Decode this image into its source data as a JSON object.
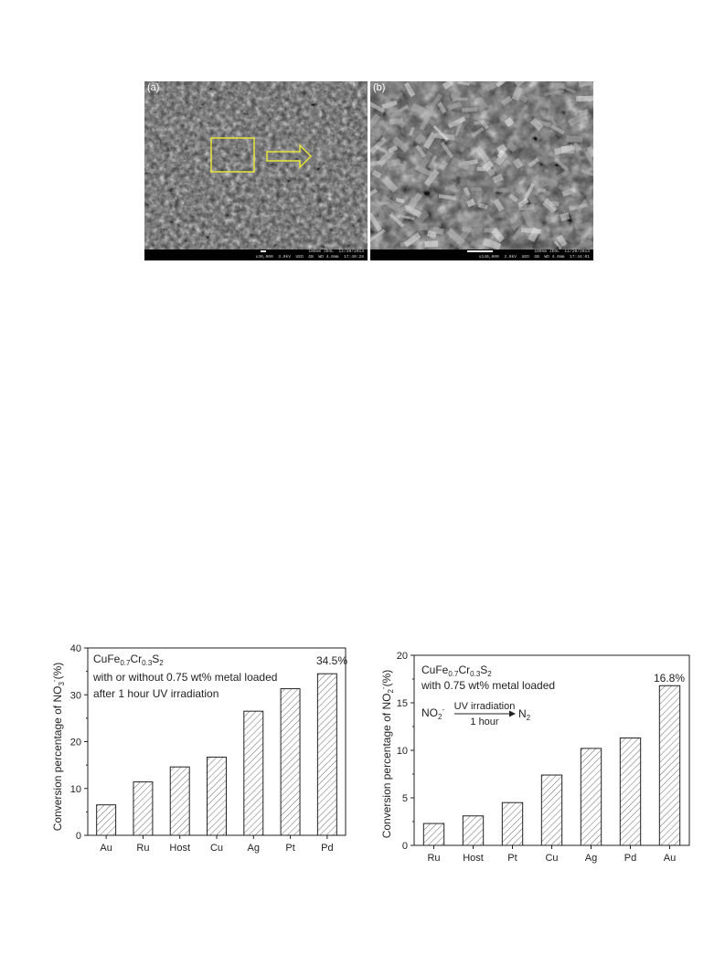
{
  "figure_a": {
    "label": "(a)",
    "info_line1": "100nm JEOL  12/20/2013",
    "info_line2": "x30,000  3.0kV  UED  GB  WD 4.0mm  17:40:28"
  },
  "figure_b": {
    "label": "(b)",
    "info_line1": "100nm JEOL  12/20/2013",
    "info_line2": "x140,000  3.0kV  UED  GB  WD 4.0mm  17:44:01"
  },
  "colors": {
    "highlight": "#e8e43a",
    "bar_hatch": "#444444"
  },
  "chart_data": [
    {
      "type": "bar",
      "categories": [
        "Au",
        "Ru",
        "Host",
        "Cu",
        "Ag",
        "Pt",
        "Pd"
      ],
      "values": [
        6.5,
        11.4,
        14.6,
        16.7,
        26.5,
        31.3,
        34.5
      ],
      "ylim": [
        0,
        40
      ],
      "yticks": [
        "0",
        "10",
        "20",
        "30",
        "40"
      ],
      "ylabel_main": "Conversion percentage of NO",
      "ylabel_sub": "3",
      "ylabel_sup": "-",
      "ylabel_tail": "(%)",
      "annotation": "34.5%",
      "formula": {
        "a": "CuFe",
        "b": "0.7",
        "c": "Cr",
        "d": "0.3",
        "e": "S",
        "f": "2"
      },
      "note1": "with or without 0.75 wt% metal loaded",
      "note2": "after 1 hour UV irradiation"
    },
    {
      "type": "bar",
      "categories": [
        "Ru",
        "Host",
        "Pt",
        "Cu",
        "Ag",
        "Pd",
        "Au"
      ],
      "values": [
        2.3,
        3.1,
        4.5,
        7.4,
        10.2,
        11.3,
        16.8
      ],
      "ylim": [
        0,
        20
      ],
      "yticks": [
        "0",
        "5",
        "10",
        "15",
        "20"
      ],
      "ylabel_main": "Conversion percentage of NO",
      "ylabel_sub": "2",
      "ylabel_sup": "-",
      "ylabel_tail": "(%)",
      "annotation": "16.8%",
      "formula": {
        "a": "CuFe",
        "b": "0.7",
        "c": "Cr",
        "d": "0.3",
        "e": "S",
        "f": "2"
      },
      "note1": "with 0.75 wt% metal loaded",
      "reaction": {
        "reactant": "NO",
        "reactant_sub": "2",
        "reactant_sup": "-",
        "above": "UV irradiation",
        "below": "1 hour",
        "product": "N",
        "product_sub": "2"
      }
    }
  ]
}
